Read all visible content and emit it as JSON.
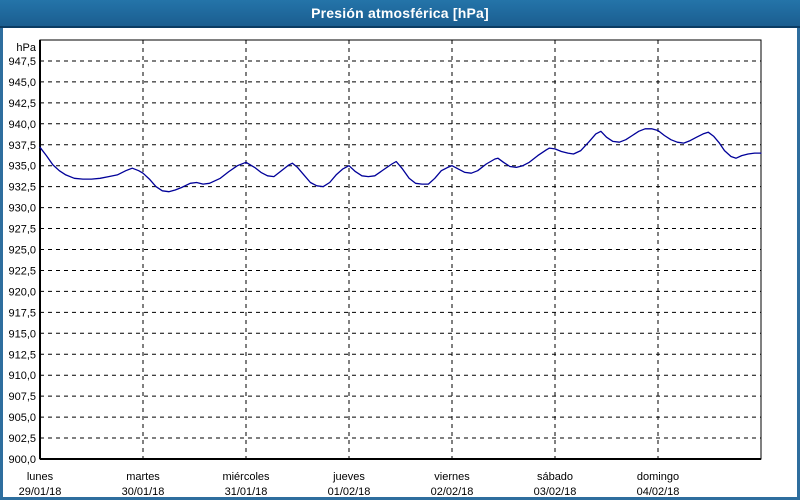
{
  "window": {
    "title": "Presión atmosférica [hPa]"
  },
  "colors": {
    "titlebar_bg": "#1E6496",
    "titlebar_border_bottom": "#0B3C63",
    "title_text": "#FFFFFF",
    "window_border": "#2E6E9E",
    "plot_bg": "#FFFFFF",
    "grid": "#000000",
    "axis": "#000000",
    "text": "#000000",
    "series_line": "#000099"
  },
  "chart_data": {
    "type": "line",
    "title": "Presión atmosférica [hPa]",
    "y_unit_label": "hPa",
    "ylabel": "hPa",
    "xlabel": "",
    "ylim": [
      900,
      950
    ],
    "y_tick_step": 2.5,
    "y_tick_labels": [
      "947,5",
      "945,0",
      "942,5",
      "940,0",
      "937,5",
      "935,0",
      "932,5",
      "930,0",
      "927,5",
      "925,0",
      "922,5",
      "920,0",
      "917,5",
      "915,0",
      "912,5",
      "910,0",
      "907,5",
      "905,0",
      "902,5",
      "900,0"
    ],
    "x_categories": [
      {
        "day": "lunes",
        "date": "29/01/18"
      },
      {
        "day": "martes",
        "date": "30/01/18"
      },
      {
        "day": "miércoles",
        "date": "31/01/18"
      },
      {
        "day": "jueves",
        "date": "01/02/18"
      },
      {
        "day": "viernes",
        "date": "02/02/18"
      },
      {
        "day": "sábado",
        "date": "03/02/18"
      },
      {
        "day": "domingo",
        "date": "04/02/18"
      }
    ],
    "x_total_hours": 168,
    "grid": "dashed",
    "legend": "none",
    "series": [
      {
        "name": "Presión atmosférica",
        "unit": "hPa",
        "color": "#000099",
        "points": [
          [
            0,
            937.2
          ],
          [
            1.5,
            936.2
          ],
          [
            3,
            935.1
          ],
          [
            4.5,
            934.4
          ],
          [
            6,
            933.9
          ],
          [
            8,
            933.5
          ],
          [
            10,
            933.4
          ],
          [
            12,
            933.4
          ],
          [
            14,
            933.5
          ],
          [
            16,
            933.7
          ],
          [
            18,
            933.9
          ],
          [
            20,
            934.4
          ],
          [
            21.5,
            934.7
          ],
          [
            23,
            934.4
          ],
          [
            24,
            934.1
          ],
          [
            25.5,
            933.4
          ],
          [
            27,
            932.5
          ],
          [
            28.5,
            932.0
          ],
          [
            30,
            931.9
          ],
          [
            31.5,
            932.1
          ],
          [
            33,
            932.4
          ],
          [
            35,
            932.9
          ],
          [
            36.5,
            933.0
          ],
          [
            38,
            932.8
          ],
          [
            39.5,
            932.9
          ],
          [
            42,
            933.5
          ],
          [
            44,
            934.3
          ],
          [
            46,
            935.0
          ],
          [
            48,
            935.4
          ],
          [
            50,
            934.8
          ],
          [
            51.5,
            934.2
          ],
          [
            53,
            933.8
          ],
          [
            54.5,
            933.7
          ],
          [
            56,
            934.3
          ],
          [
            58,
            935.1
          ],
          [
            58.8,
            935.3
          ],
          [
            60,
            934.8
          ],
          [
            61.5,
            933.9
          ],
          [
            63,
            933.0
          ],
          [
            64.5,
            932.6
          ],
          [
            66,
            932.5
          ],
          [
            67.5,
            933.0
          ],
          [
            69,
            933.9
          ],
          [
            70.5,
            934.6
          ],
          [
            72,
            935.0
          ],
          [
            73.5,
            934.3
          ],
          [
            75,
            933.8
          ],
          [
            76.5,
            933.7
          ],
          [
            78,
            933.8
          ],
          [
            80,
            934.5
          ],
          [
            82,
            935.2
          ],
          [
            83,
            935.5
          ],
          [
            84.5,
            934.6
          ],
          [
            86,
            933.5
          ],
          [
            87.5,
            932.9
          ],
          [
            89,
            932.8
          ],
          [
            90.5,
            932.8
          ],
          [
            92,
            933.5
          ],
          [
            93.5,
            934.4
          ],
          [
            95,
            934.8
          ],
          [
            96,
            935.0
          ],
          [
            97.5,
            934.6
          ],
          [
            99,
            934.2
          ],
          [
            100.5,
            934.1
          ],
          [
            102,
            934.4
          ],
          [
            104,
            935.2
          ],
          [
            106,
            935.8
          ],
          [
            106.7,
            935.9
          ],
          [
            108,
            935.4
          ],
          [
            109.5,
            934.9
          ],
          [
            111,
            934.8
          ],
          [
            112.5,
            935.0
          ],
          [
            114,
            935.4
          ],
          [
            116,
            936.2
          ],
          [
            118,
            936.9
          ],
          [
            118.7,
            937.1
          ],
          [
            120,
            937.0
          ],
          [
            121.5,
            936.7
          ],
          [
            123,
            936.5
          ],
          [
            124.3,
            936.4
          ],
          [
            126,
            936.8
          ],
          [
            128,
            937.9
          ],
          [
            129.5,
            938.8
          ],
          [
            130.7,
            939.1
          ],
          [
            132,
            938.4
          ],
          [
            133.5,
            937.9
          ],
          [
            135,
            937.8
          ],
          [
            136.5,
            938.1
          ],
          [
            138,
            938.6
          ],
          [
            139.5,
            939.1
          ],
          [
            141,
            939.4
          ],
          [
            142.5,
            939.4
          ],
          [
            144,
            939.2
          ],
          [
            145.5,
            938.6
          ],
          [
            147,
            938.1
          ],
          [
            148.5,
            937.8
          ],
          [
            150,
            937.7
          ],
          [
            151.5,
            938.0
          ],
          [
            153,
            938.4
          ],
          [
            154.5,
            938.8
          ],
          [
            155.7,
            939.0
          ],
          [
            157,
            938.5
          ],
          [
            158.3,
            937.7
          ],
          [
            159.5,
            936.8
          ],
          [
            161,
            936.1
          ],
          [
            162.2,
            935.9
          ],
          [
            163.5,
            936.2
          ],
          [
            165,
            936.4
          ],
          [
            166.5,
            936.5
          ],
          [
            168,
            936.5
          ]
        ]
      }
    ]
  }
}
